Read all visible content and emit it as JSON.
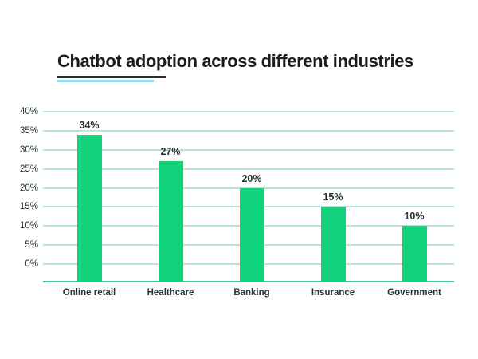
{
  "title": {
    "text": "Chatbot adoption across different industries"
  },
  "chart_data": {
    "type": "bar",
    "title": "Chatbot adoption across different industries",
    "categories": [
      "Online retail",
      "Healthcare",
      "Banking",
      "Insurance",
      "Government"
    ],
    "values": [
      34,
      27,
      20,
      15,
      10
    ],
    "value_labels": [
      "34%",
      "27%",
      "20%",
      "15%",
      "10%"
    ],
    "xlabel": "",
    "ylabel": "",
    "ylim": [
      0,
      40
    ],
    "yticks": [
      40,
      35,
      30,
      25,
      20,
      15,
      10,
      5,
      0
    ],
    "ytick_labels": [
      "40%",
      "35%",
      "30%",
      "25%",
      "20%",
      "15%",
      "10%",
      "5%",
      "0%"
    ],
    "grid": true,
    "legend": false,
    "colors": {
      "bar": "#12d27c",
      "gridline": "#b7e5d6",
      "baseline": "#38cb9a",
      "axis_text": "#273238",
      "title_text": "#1c1c1c",
      "title_underline_dark": "#2d2d2d",
      "title_underline_blue": "#8ed6ec"
    }
  }
}
